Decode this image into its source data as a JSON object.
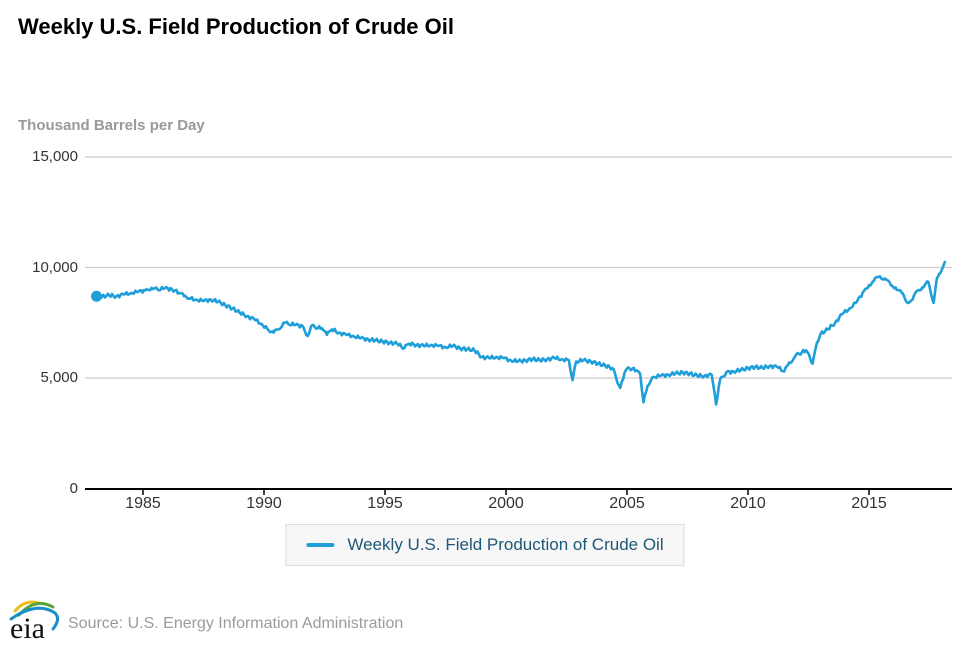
{
  "title": "Weekly U.S. Field Production of Crude Oil",
  "y_axis_title": "Thousand Barrels per Day",
  "legend": {
    "label": "Weekly U.S. Field Production of Crude Oil"
  },
  "source_text": "Source: U.S. Energy Information Administration",
  "logo_text": "eia",
  "colors": {
    "line": "#1f9fda",
    "gridline": "#cccccc",
    "axis": "#000000",
    "tick_label": "#333333",
    "muted_text": "#999999",
    "legend_text": "#1f5777",
    "legend_bg": "#f7f7f7",
    "legend_border": "#dddddd"
  },
  "chart_data": {
    "type": "line",
    "title": "Weekly U.S. Field Production of Crude Oil",
    "xlabel": "",
    "ylabel": "Thousand Barrels per Day",
    "units": "Thousand Barrels per Day",
    "grid": true,
    "legend_position": "bottom",
    "xlim": [
      1983.0,
      2018.4
    ],
    "ylim": [
      0,
      15000
    ],
    "x_ticks": [
      1985,
      1990,
      1995,
      2000,
      2005,
      2010,
      2015
    ],
    "y_ticks": [
      {
        "value": 0,
        "label": "0"
      },
      {
        "value": 5000,
        "label": "5,000"
      },
      {
        "value": 10000,
        "label": "10,000"
      },
      {
        "value": 15000,
        "label": "15,000"
      }
    ],
    "first_point_marker": true,
    "series": [
      {
        "name": "Weekly U.S. Field Production of Crude Oil",
        "points": [
          [
            1983.08,
            8700
          ],
          [
            1983.3,
            8680
          ],
          [
            1983.6,
            8740
          ],
          [
            1983.9,
            8700
          ],
          [
            1984.2,
            8780
          ],
          [
            1984.5,
            8850
          ],
          [
            1984.8,
            8900
          ],
          [
            1985.1,
            8970
          ],
          [
            1985.35,
            9080
          ],
          [
            1985.6,
            9000
          ],
          [
            1985.9,
            9060
          ],
          [
            1986.2,
            9020
          ],
          [
            1986.5,
            8850
          ],
          [
            1986.7,
            8700
          ],
          [
            1986.9,
            8600
          ],
          [
            1987.2,
            8550
          ],
          [
            1987.5,
            8480
          ],
          [
            1987.8,
            8550
          ],
          [
            1988.1,
            8450
          ],
          [
            1988.4,
            8300
          ],
          [
            1988.7,
            8150
          ],
          [
            1989.0,
            7950
          ],
          [
            1989.3,
            7800
          ],
          [
            1989.6,
            7650
          ],
          [
            1989.9,
            7450
          ],
          [
            1990.2,
            7150
          ],
          [
            1990.4,
            7050
          ],
          [
            1990.6,
            7200
          ],
          [
            1990.8,
            7500
          ],
          [
            1991.0,
            7450
          ],
          [
            1991.3,
            7400
          ],
          [
            1991.6,
            7350
          ],
          [
            1991.8,
            6900
          ],
          [
            1991.95,
            7350
          ],
          [
            1992.1,
            7300
          ],
          [
            1992.4,
            7250
          ],
          [
            1992.6,
            6950
          ],
          [
            1992.8,
            7200
          ],
          [
            1993.1,
            7050
          ],
          [
            1993.4,
            6950
          ],
          [
            1993.7,
            6900
          ],
          [
            1994.0,
            6800
          ],
          [
            1994.3,
            6750
          ],
          [
            1994.6,
            6700
          ],
          [
            1994.9,
            6650
          ],
          [
            1995.2,
            6600
          ],
          [
            1995.5,
            6550
          ],
          [
            1995.8,
            6350
          ],
          [
            1996.0,
            6550
          ],
          [
            1996.3,
            6500
          ],
          [
            1996.6,
            6450
          ],
          [
            1996.9,
            6500
          ],
          [
            1997.2,
            6450
          ],
          [
            1997.5,
            6400
          ],
          [
            1997.8,
            6450
          ],
          [
            1998.1,
            6350
          ],
          [
            1998.4,
            6300
          ],
          [
            1998.7,
            6250
          ],
          [
            1999.0,
            5950
          ],
          [
            1999.3,
            5900
          ],
          [
            1999.6,
            5950
          ],
          [
            1999.9,
            5900
          ],
          [
            2000.2,
            5800
          ],
          [
            2000.5,
            5750
          ],
          [
            2000.8,
            5800
          ],
          [
            2001.1,
            5850
          ],
          [
            2001.4,
            5800
          ],
          [
            2001.7,
            5850
          ],
          [
            2002.0,
            5900
          ],
          [
            2002.3,
            5850
          ],
          [
            2002.6,
            5800
          ],
          [
            2002.75,
            4900
          ],
          [
            2002.9,
            5750
          ],
          [
            2003.2,
            5800
          ],
          [
            2003.5,
            5750
          ],
          [
            2003.8,
            5650
          ],
          [
            2004.1,
            5550
          ],
          [
            2004.4,
            5450
          ],
          [
            2004.72,
            4550
          ],
          [
            2004.9,
            5250
          ],
          [
            2005.1,
            5450
          ],
          [
            2005.4,
            5350
          ],
          [
            2005.55,
            5150
          ],
          [
            2005.68,
            3900
          ],
          [
            2005.85,
            4650
          ],
          [
            2006.1,
            5050
          ],
          [
            2006.4,
            5100
          ],
          [
            2006.7,
            5150
          ],
          [
            2007.0,
            5200
          ],
          [
            2007.3,
            5250
          ],
          [
            2007.6,
            5200
          ],
          [
            2007.9,
            5100
          ],
          [
            2008.2,
            5100
          ],
          [
            2008.5,
            5150
          ],
          [
            2008.68,
            3800
          ],
          [
            2008.85,
            4950
          ],
          [
            2009.1,
            5250
          ],
          [
            2009.4,
            5300
          ],
          [
            2009.7,
            5350
          ],
          [
            2010.0,
            5450
          ],
          [
            2010.3,
            5500
          ],
          [
            2010.6,
            5450
          ],
          [
            2010.9,
            5550
          ],
          [
            2011.2,
            5500
          ],
          [
            2011.5,
            5300
          ],
          [
            2011.7,
            5700
          ],
          [
            2011.9,
            5900
          ],
          [
            2012.1,
            6100
          ],
          [
            2012.4,
            6250
          ],
          [
            2012.67,
            5650
          ],
          [
            2012.85,
            6600
          ],
          [
            2013.0,
            7000
          ],
          [
            2013.3,
            7200
          ],
          [
            2013.6,
            7500
          ],
          [
            2013.9,
            7900
          ],
          [
            2014.2,
            8150
          ],
          [
            2014.5,
            8450
          ],
          [
            2014.8,
            8950
          ],
          [
            2015.0,
            9200
          ],
          [
            2015.2,
            9400
          ],
          [
            2015.45,
            9600
          ],
          [
            2015.65,
            9500
          ],
          [
            2015.9,
            9200
          ],
          [
            2016.1,
            9100
          ],
          [
            2016.35,
            8850
          ],
          [
            2016.55,
            8450
          ],
          [
            2016.8,
            8550
          ],
          [
            2017.0,
            8950
          ],
          [
            2017.2,
            9100
          ],
          [
            2017.45,
            9350
          ],
          [
            2017.67,
            8400
          ],
          [
            2017.8,
            9500
          ],
          [
            2017.95,
            9750
          ],
          [
            2018.05,
            10000
          ],
          [
            2018.15,
            10300
          ]
        ]
      }
    ]
  }
}
